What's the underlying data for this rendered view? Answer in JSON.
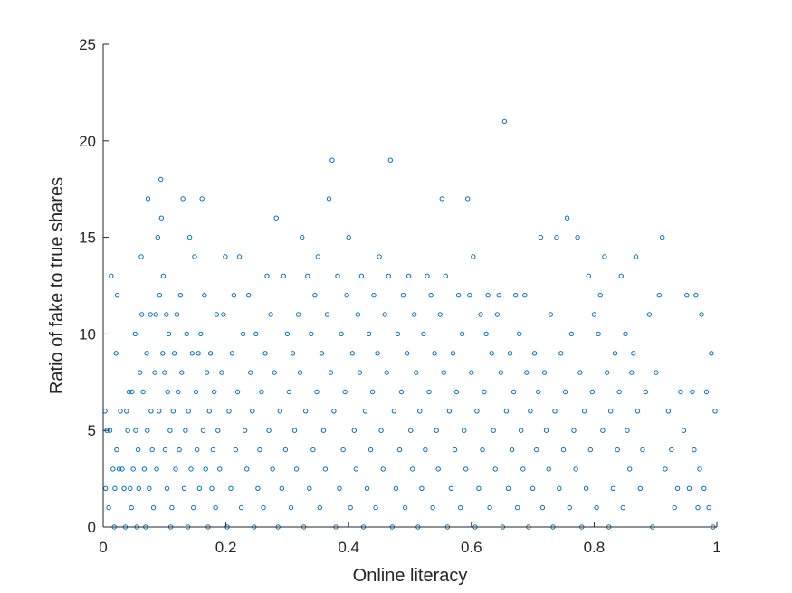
{
  "chart_data": {
    "type": "scatter",
    "title": "",
    "xlabel": "Online literacy",
    "ylabel": "Ratio of fake to true shares",
    "xlim": [
      0,
      1
    ],
    "ylim": [
      0,
      25
    ],
    "xticks": [
      0,
      0.2,
      0.4,
      0.6,
      0.8,
      1
    ],
    "xtick_labels": [
      "0",
      "0.2",
      "0.4",
      "0.6",
      "0.8",
      "1"
    ],
    "yticks": [
      0,
      5,
      10,
      15,
      20,
      25
    ],
    "ytick_labels": [
      "0",
      "5",
      "10",
      "15",
      "20",
      "25"
    ],
    "grid": false,
    "marker": "open-circle",
    "color": "#0072BD",
    "points": [
      [
        0.003,
        6
      ],
      [
        0.004,
        2
      ],
      [
        0.006,
        5
      ],
      [
        0.009,
        1
      ],
      [
        0.011,
        5
      ],
      [
        0.013,
        13
      ],
      [
        0.016,
        3
      ],
      [
        0.018,
        0
      ],
      [
        0.019,
        2
      ],
      [
        0.021,
        9
      ],
      [
        0.022,
        4
      ],
      [
        0.023,
        12
      ],
      [
        0.026,
        3
      ],
      [
        0.028,
        6
      ],
      [
        0.031,
        3
      ],
      [
        0.034,
        2
      ],
      [
        0.036,
        0
      ],
      [
        0.038,
        6
      ],
      [
        0.04,
        5
      ],
      [
        0.042,
        7
      ],
      [
        0.044,
        2
      ],
      [
        0.046,
        1
      ],
      [
        0.047,
        7
      ],
      [
        0.049,
        3
      ],
      [
        0.052,
        10
      ],
      [
        0.053,
        5
      ],
      [
        0.055,
        0
      ],
      [
        0.057,
        4
      ],
      [
        0.058,
        2
      ],
      [
        0.06,
        8
      ],
      [
        0.062,
        14
      ],
      [
        0.063,
        11
      ],
      [
        0.065,
        7
      ],
      [
        0.067,
        3
      ],
      [
        0.069,
        0
      ],
      [
        0.071,
        9
      ],
      [
        0.072,
        5
      ],
      [
        0.073,
        17
      ],
      [
        0.075,
        2
      ],
      [
        0.077,
        11
      ],
      [
        0.078,
        6
      ],
      [
        0.08,
        4
      ],
      [
        0.082,
        1
      ],
      [
        0.084,
        8
      ],
      [
        0.086,
        11
      ],
      [
        0.087,
        3
      ],
      [
        0.089,
        15
      ],
      [
        0.091,
        6
      ],
      [
        0.092,
        12
      ],
      [
        0.094,
        18
      ],
      [
        0.095,
        16
      ],
      [
        0.097,
        9
      ],
      [
        0.098,
        13
      ],
      [
        0.1,
        8
      ],
      [
        0.101,
        4
      ],
      [
        0.103,
        11
      ],
      [
        0.104,
        2
      ],
      [
        0.105,
        7
      ],
      [
        0.107,
        10
      ],
      [
        0.109,
        5
      ],
      [
        0.11,
        0
      ],
      [
        0.112,
        1
      ],
      [
        0.114,
        6
      ],
      [
        0.116,
        9
      ],
      [
        0.118,
        3
      ],
      [
        0.12,
        11
      ],
      [
        0.122,
        7
      ],
      [
        0.124,
        4
      ],
      [
        0.126,
        12
      ],
      [
        0.128,
        8
      ],
      [
        0.13,
        17
      ],
      [
        0.132,
        2
      ],
      [
        0.134,
        5
      ],
      [
        0.136,
        10
      ],
      [
        0.138,
        0
      ],
      [
        0.139,
        6
      ],
      [
        0.141,
        15
      ],
      [
        0.143,
        3
      ],
      [
        0.145,
        9
      ],
      [
        0.147,
        1
      ],
      [
        0.149,
        14
      ],
      [
        0.151,
        7
      ],
      [
        0.153,
        4
      ],
      [
        0.155,
        9
      ],
      [
        0.157,
        2
      ],
      [
        0.159,
        10
      ],
      [
        0.161,
        17
      ],
      [
        0.163,
        5
      ],
      [
        0.165,
        12
      ],
      [
        0.167,
        3
      ],
      [
        0.169,
        8
      ],
      [
        0.171,
        0
      ],
      [
        0.173,
        6
      ],
      [
        0.175,
        9
      ],
      [
        0.177,
        2
      ],
      [
        0.179,
        4
      ],
      [
        0.181,
        7
      ],
      [
        0.183,
        1
      ],
      [
        0.185,
        11
      ],
      [
        0.187,
        5
      ],
      [
        0.19,
        3
      ],
      [
        0.193,
        8
      ],
      [
        0.196,
        11
      ],
      [
        0.199,
        14
      ],
      [
        0.202,
        0
      ],
      [
        0.205,
        6
      ],
      [
        0.208,
        2
      ],
      [
        0.21,
        9
      ],
      [
        0.213,
        12
      ],
      [
        0.216,
        4
      ],
      [
        0.219,
        7
      ],
      [
        0.222,
        14
      ],
      [
        0.225,
        1
      ],
      [
        0.228,
        10
      ],
      [
        0.231,
        5
      ],
      [
        0.234,
        3
      ],
      [
        0.237,
        12
      ],
      [
        0.24,
        8
      ],
      [
        0.243,
        6
      ],
      [
        0.246,
        0
      ],
      [
        0.249,
        10
      ],
      [
        0.252,
        2
      ],
      [
        0.255,
        4
      ],
      [
        0.258,
        7
      ],
      [
        0.261,
        1
      ],
      [
        0.264,
        9
      ],
      [
        0.267,
        13
      ],
      [
        0.27,
        5
      ],
      [
        0.273,
        11
      ],
      [
        0.276,
        3
      ],
      [
        0.279,
        8
      ],
      [
        0.282,
        16
      ],
      [
        0.285,
        0
      ],
      [
        0.288,
        6
      ],
      [
        0.291,
        2
      ],
      [
        0.294,
        13
      ],
      [
        0.297,
        4
      ],
      [
        0.3,
        10
      ],
      [
        0.303,
        7
      ],
      [
        0.306,
        1
      ],
      [
        0.309,
        9
      ],
      [
        0.312,
        5
      ],
      [
        0.315,
        3
      ],
      [
        0.318,
        11
      ],
      [
        0.321,
        8
      ],
      [
        0.324,
        15
      ],
      [
        0.327,
        0
      ],
      [
        0.33,
        6
      ],
      [
        0.333,
        13
      ],
      [
        0.336,
        2
      ],
      [
        0.339,
        10
      ],
      [
        0.342,
        4
      ],
      [
        0.345,
        12
      ],
      [
        0.348,
        7
      ],
      [
        0.35,
        14
      ],
      [
        0.353,
        1
      ],
      [
        0.356,
        9
      ],
      [
        0.359,
        5
      ],
      [
        0.362,
        3
      ],
      [
        0.365,
        11
      ],
      [
        0.368,
        17
      ],
      [
        0.371,
        8
      ],
      [
        0.373,
        19
      ],
      [
        0.376,
        6
      ],
      [
        0.379,
        0
      ],
      [
        0.382,
        13
      ],
      [
        0.385,
        2
      ],
      [
        0.388,
        10
      ],
      [
        0.391,
        4
      ],
      [
        0.394,
        7
      ],
      [
        0.397,
        12
      ],
      [
        0.4,
        15
      ],
      [
        0.403,
        1
      ],
      [
        0.406,
        9
      ],
      [
        0.409,
        5
      ],
      [
        0.412,
        3
      ],
      [
        0.415,
        11
      ],
      [
        0.418,
        8
      ],
      [
        0.421,
        13
      ],
      [
        0.424,
        0
      ],
      [
        0.427,
        6
      ],
      [
        0.43,
        2
      ],
      [
        0.433,
        10
      ],
      [
        0.436,
        4
      ],
      [
        0.439,
        7
      ],
      [
        0.441,
        12
      ],
      [
        0.444,
        1
      ],
      [
        0.447,
        9
      ],
      [
        0.45,
        14
      ],
      [
        0.453,
        5
      ],
      [
        0.456,
        3
      ],
      [
        0.459,
        11
      ],
      [
        0.462,
        8
      ],
      [
        0.465,
        13
      ],
      [
        0.468,
        19
      ],
      [
        0.471,
        0
      ],
      [
        0.474,
        6
      ],
      [
        0.477,
        2
      ],
      [
        0.48,
        10
      ],
      [
        0.483,
        4
      ],
      [
        0.486,
        7
      ],
      [
        0.489,
        12
      ],
      [
        0.492,
        1
      ],
      [
        0.495,
        9
      ],
      [
        0.498,
        13
      ],
      [
        0.501,
        5
      ],
      [
        0.504,
        3
      ],
      [
        0.507,
        11
      ],
      [
        0.51,
        8
      ],
      [
        0.513,
        0
      ],
      [
        0.516,
        6
      ],
      [
        0.519,
        2
      ],
      [
        0.522,
        10
      ],
      [
        0.525,
        4
      ],
      [
        0.528,
        13
      ],
      [
        0.531,
        7
      ],
      [
        0.534,
        12
      ],
      [
        0.537,
        1
      ],
      [
        0.54,
        9
      ],
      [
        0.543,
        5
      ],
      [
        0.546,
        3
      ],
      [
        0.549,
        11
      ],
      [
        0.552,
        17
      ],
      [
        0.555,
        8
      ],
      [
        0.558,
        13
      ],
      [
        0.561,
        0
      ],
      [
        0.564,
        6
      ],
      [
        0.567,
        2
      ],
      [
        0.57,
        9
      ],
      [
        0.573,
        4
      ],
      [
        0.576,
        7
      ],
      [
        0.579,
        12
      ],
      [
        0.582,
        1
      ],
      [
        0.585,
        10
      ],
      [
        0.588,
        5
      ],
      [
        0.591,
        3
      ],
      [
        0.594,
        17
      ],
      [
        0.597,
        12
      ],
      [
        0.6,
        8
      ],
      [
        0.603,
        14
      ],
      [
        0.606,
        0
      ],
      [
        0.609,
        6
      ],
      [
        0.612,
        2
      ],
      [
        0.615,
        11
      ],
      [
        0.618,
        4
      ],
      [
        0.621,
        7
      ],
      [
        0.624,
        10
      ],
      [
        0.627,
        12
      ],
      [
        0.63,
        1
      ],
      [
        0.633,
        9
      ],
      [
        0.636,
        5
      ],
      [
        0.639,
        3
      ],
      [
        0.642,
        11
      ],
      [
        0.645,
        12
      ],
      [
        0.648,
        8
      ],
      [
        0.651,
        0
      ],
      [
        0.654,
        21
      ],
      [
        0.657,
        6
      ],
      [
        0.66,
        2
      ],
      [
        0.663,
        9
      ],
      [
        0.666,
        4
      ],
      [
        0.669,
        7
      ],
      [
        0.672,
        12
      ],
      [
        0.675,
        1
      ],
      [
        0.678,
        10
      ],
      [
        0.681,
        5
      ],
      [
        0.684,
        3
      ],
      [
        0.687,
        12
      ],
      [
        0.69,
        8
      ],
      [
        0.693,
        0
      ],
      [
        0.696,
        6
      ],
      [
        0.7,
        2
      ],
      [
        0.703,
        9
      ],
      [
        0.706,
        4
      ],
      [
        0.709,
        7
      ],
      [
        0.713,
        15
      ],
      [
        0.716,
        1
      ],
      [
        0.719,
        8
      ],
      [
        0.722,
        5
      ],
      [
        0.726,
        3
      ],
      [
        0.729,
        11
      ],
      [
        0.733,
        0
      ],
      [
        0.736,
        6
      ],
      [
        0.739,
        15
      ],
      [
        0.743,
        2
      ],
      [
        0.746,
        9
      ],
      [
        0.75,
        4
      ],
      [
        0.753,
        7
      ],
      [
        0.756,
        16
      ],
      [
        0.76,
        1
      ],
      [
        0.763,
        10
      ],
      [
        0.767,
        5
      ],
      [
        0.77,
        3
      ],
      [
        0.773,
        15
      ],
      [
        0.777,
        8
      ],
      [
        0.78,
        0
      ],
      [
        0.784,
        6
      ],
      [
        0.787,
        2
      ],
      [
        0.791,
        13
      ],
      [
        0.794,
        4
      ],
      [
        0.797,
        7
      ],
      [
        0.8,
        11
      ],
      [
        0.804,
        1
      ],
      [
        0.807,
        10
      ],
      [
        0.81,
        12
      ],
      [
        0.814,
        5
      ],
      [
        0.817,
        14
      ],
      [
        0.821,
        8
      ],
      [
        0.824,
        0
      ],
      [
        0.827,
        6
      ],
      [
        0.831,
        2
      ],
      [
        0.834,
        9
      ],
      [
        0.838,
        4
      ],
      [
        0.841,
        7
      ],
      [
        0.844,
        13
      ],
      [
        0.847,
        1
      ],
      [
        0.851,
        10
      ],
      [
        0.854,
        5
      ],
      [
        0.858,
        3
      ],
      [
        0.861,
        8
      ],
      [
        0.864,
        9
      ],
      [
        0.868,
        14
      ],
      [
        0.871,
        6
      ],
      [
        0.875,
        2
      ],
      [
        0.879,
        4
      ],
      [
        0.884,
        7
      ],
      [
        0.89,
        11
      ],
      [
        0.895,
        0
      ],
      [
        0.901,
        8
      ],
      [
        0.906,
        12
      ],
      [
        0.911,
        15
      ],
      [
        0.916,
        3
      ],
      [
        0.921,
        6
      ],
      [
        0.926,
        4
      ],
      [
        0.931,
        1
      ],
      [
        0.936,
        2
      ],
      [
        0.941,
        7
      ],
      [
        0.946,
        5
      ],
      [
        0.951,
        12
      ],
      [
        0.955,
        2
      ],
      [
        0.96,
        7
      ],
      [
        0.963,
        4
      ],
      [
        0.966,
        12
      ],
      [
        0.969,
        1
      ],
      [
        0.972,
        3
      ],
      [
        0.975,
        11
      ],
      [
        0.979,
        2
      ],
      [
        0.983,
        7
      ],
      [
        0.987,
        1
      ],
      [
        0.991,
        9
      ],
      [
        0.994,
        0
      ],
      [
        0.997,
        6
      ]
    ]
  }
}
